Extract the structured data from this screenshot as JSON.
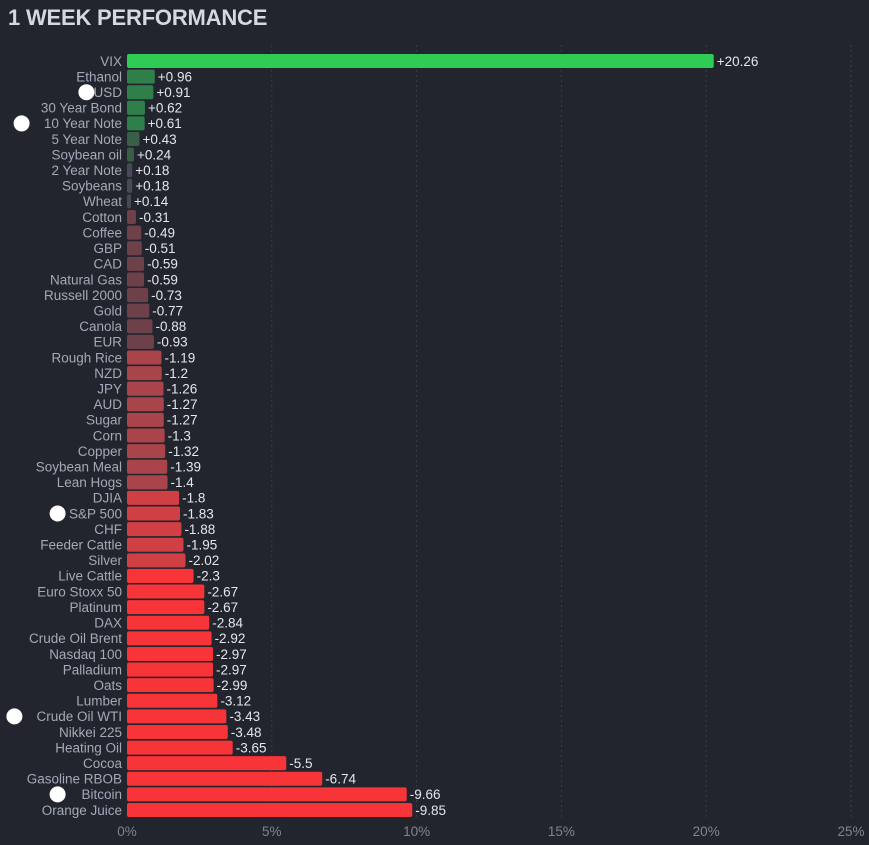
{
  "chart_data": {
    "type": "bar",
    "orientation": "horizontal",
    "title": "1 WEEK PERFORMANCE",
    "xlabel": "",
    "ylabel": "",
    "xlim": [
      0,
      25
    ],
    "x_ticks": [
      0,
      5,
      10,
      15,
      20,
      25
    ],
    "x_tick_labels": [
      "0%",
      "5%",
      "10%",
      "15%",
      "20%",
      "25%"
    ],
    "grid": "vertical dashed",
    "bar_length": "absolute value",
    "colors": {
      "strong_positive": "#2fcc55",
      "positive": "#2f7f4b",
      "weak_positive": "#3a5e46",
      "flat": "#454b55",
      "weak_negative": "#6e4049",
      "mid_negative": "#a9444b",
      "negative": "#cf3f43",
      "strong_negative": "#f73539"
    },
    "categories": [
      "VIX",
      "Ethanol",
      "USD",
      "30 Year Bond",
      "10 Year Note",
      "5 Year Note",
      "Soybean oil",
      "2 Year Note",
      "Soybeans",
      "Wheat",
      "Cotton",
      "Coffee",
      "GBP",
      "CAD",
      "Natural Gas",
      "Russell 2000",
      "Gold",
      "Canola",
      "EUR",
      "Rough Rice",
      "NZD",
      "JPY",
      "AUD",
      "Sugar",
      "Corn",
      "Copper",
      "Soybean Meal",
      "Lean Hogs",
      "DJIA",
      "S&P 500",
      "CHF",
      "Feeder Cattle",
      "Silver",
      "Live Cattle",
      "Euro Stoxx 50",
      "Platinum",
      "DAX",
      "Crude Oil Brent",
      "Nasdaq 100",
      "Palladium",
      "Oats",
      "Lumber",
      "Crude Oil WTI",
      "Nikkei 225",
      "Heating Oil",
      "Cocoa",
      "Gasoline RBOB",
      "Bitcoin",
      "Orange Juice"
    ],
    "values": [
      20.26,
      0.96,
      0.91,
      0.62,
      0.61,
      0.43,
      0.24,
      0.18,
      0.18,
      0.14,
      -0.31,
      -0.49,
      -0.51,
      -0.59,
      -0.59,
      -0.73,
      -0.77,
      -0.88,
      -0.93,
      -1.19,
      -1.2,
      -1.26,
      -1.27,
      -1.27,
      -1.3,
      -1.32,
      -1.39,
      -1.4,
      -1.8,
      -1.83,
      -1.88,
      -1.95,
      -2.02,
      -2.3,
      -2.67,
      -2.67,
      -2.84,
      -2.92,
      -2.97,
      -2.97,
      -2.99,
      -3.12,
      -3.43,
      -3.48,
      -3.65,
      -5.5,
      -6.74,
      -9.66,
      -9.85
    ],
    "value_labels": [
      "+20.26",
      "+0.96",
      "+0.91",
      "+0.62",
      "+0.61",
      "+0.43",
      "+0.24",
      "+0.18",
      "+0.18",
      "+0.14",
      "-0.31",
      "-0.49",
      "-0.51",
      "-0.59",
      "-0.59",
      "-0.73",
      "-0.77",
      "-0.88",
      "-0.93",
      "-1.19",
      "-1.2",
      "-1.26",
      "-1.27",
      "-1.27",
      "-1.3",
      "-1.32",
      "-1.39",
      "-1.4",
      "-1.8",
      "-1.83",
      "-1.88",
      "-1.95",
      "-2.02",
      "-2.3",
      "-2.67",
      "-2.67",
      "-2.84",
      "-2.92",
      "-2.97",
      "-2.97",
      "-2.99",
      "-3.12",
      "-3.43",
      "-3.48",
      "-3.65",
      "-5.5",
      "-6.74",
      "-9.66",
      "-9.85"
    ],
    "marked_categories": [
      "USD",
      "10 Year Note",
      "S&P 500",
      "Crude Oil WTI",
      "Bitcoin"
    ]
  }
}
